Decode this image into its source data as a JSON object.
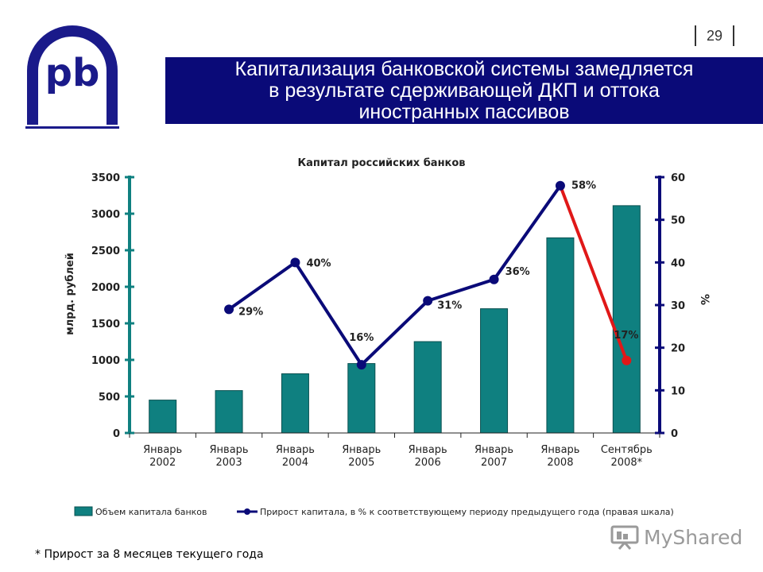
{
  "page_number": "29",
  "title": "Капитализация банковской системы замедляется\nв результате сдерживающей ДКП и оттока\nиностранных пассивов",
  "footnote": "* Прирост за 8 месяцев текущего года",
  "watermark": "MyShared",
  "colors": {
    "banner": "#0a0a78",
    "bars": "#0f8080",
    "growth_line": "#0a0a78",
    "growth_line_last": "#e01818",
    "axis_left": "#0f8080",
    "axis_right": "#0a0a78",
    "logo": "#1a1a8a"
  },
  "icons": {
    "logo": "logo-pb",
    "watermark": "presentation-board-icon"
  },
  "chart_data": {
    "type": "bar",
    "title": "Капитал российских банков",
    "categories": [
      "Январь\n2002",
      "Январь\n2003",
      "Январь\n2004",
      "Январь\n2005",
      "Январь\n2006",
      "Январь\n2007",
      "Январь\n2008",
      "Сентябрь\n2008*"
    ],
    "ylabel": "млрд. рублей",
    "y2label": "%",
    "ylim": [
      0,
      3500
    ],
    "y2lim": [
      0,
      60
    ],
    "yticks": [
      0,
      500,
      1000,
      1500,
      2000,
      2500,
      3000,
      3500
    ],
    "y2ticks": [
      0,
      10,
      20,
      30,
      40,
      50,
      60
    ],
    "legend": "bottom",
    "grid": false,
    "series": [
      {
        "name": "Объем капитала банков",
        "type": "bar",
        "axis": "left",
        "values": [
          450,
          580,
          810,
          950,
          1250,
          1700,
          2670,
          3110
        ]
      },
      {
        "name": "Прирост капитала, в % к соответствующему периоду предыдущего года (правая шкала)",
        "type": "line",
        "axis": "right",
        "values": [
          null,
          29,
          40,
          16,
          31,
          36,
          58,
          17
        ],
        "labels": [
          "",
          "29%",
          "40%",
          "16%",
          "31%",
          "36%",
          "58%",
          "17%"
        ]
      }
    ]
  }
}
